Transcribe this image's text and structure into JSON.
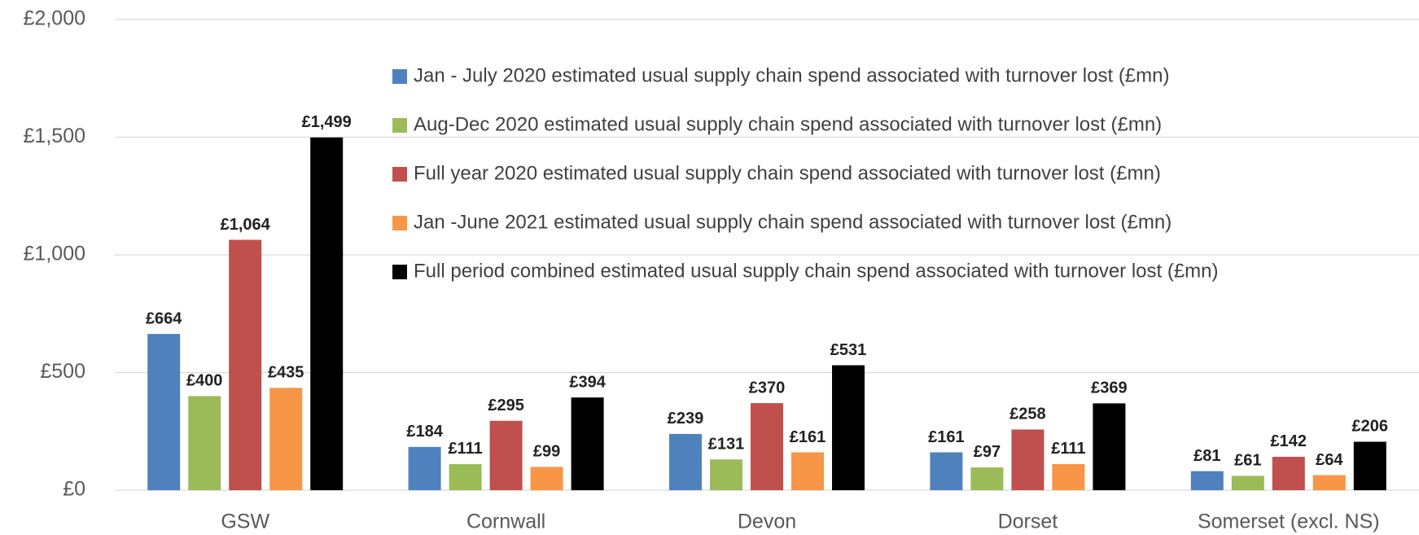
{
  "chart_data": {
    "type": "bar",
    "categories": [
      "GSW",
      "Cornwall",
      "Devon",
      "Dorset",
      "Somerset (excl. NS)"
    ],
    "series": [
      {
        "name": "Jan - July 2020 estimated usual supply chain spend associated with turnover lost (£mn)",
        "color": "#4f81bd",
        "values": [
          664,
          184,
          239,
          161,
          81
        ],
        "value_labels": [
          "£664",
          "£184",
          "£239",
          "£161",
          "£81"
        ]
      },
      {
        "name": "Aug-Dec 2020 estimated usual supply chain spend associated with turnover lost (£mn)",
        "color": "#9bbb59",
        "values": [
          400,
          111,
          131,
          97,
          61
        ],
        "value_labels": [
          "£400",
          "£111",
          "£131",
          "£97",
          "£61"
        ]
      },
      {
        "name": "Full year 2020 estimated usual supply chain spend associated with turnover lost (£mn)",
        "color": "#c0504d",
        "values": [
          1064,
          295,
          370,
          258,
          142
        ],
        "value_labels": [
          "£1,064",
          "£295",
          "£370",
          "£258",
          "£142"
        ]
      },
      {
        "name": "Jan -June 2021 estimated usual supply chain spend associated with turnover lost (£mn)",
        "color": "#f79646",
        "values": [
          435,
          99,
          161,
          111,
          64
        ],
        "value_labels": [
          "£435",
          "£99",
          "£161",
          "£111",
          "£64"
        ]
      },
      {
        "name": "Full period combined estimated usual supply chain spend associated with turnover lost (£mn)",
        "color": "#000000",
        "values": [
          1499,
          394,
          531,
          369,
          206
        ],
        "value_labels": [
          "£1,499",
          "£394",
          "£531",
          "£369",
          "£206"
        ]
      }
    ],
    "ylim": [
      0,
      2000
    ],
    "yticks": [
      {
        "value": 0,
        "label": "£0"
      },
      {
        "value": 500,
        "label": "£500"
      },
      {
        "value": 1000,
        "label": "£1,000"
      },
      {
        "value": 1500,
        "label": "£1,500"
      },
      {
        "value": 2000,
        "label": "£2,000"
      }
    ],
    "grid": true,
    "legend": "top-right"
  }
}
